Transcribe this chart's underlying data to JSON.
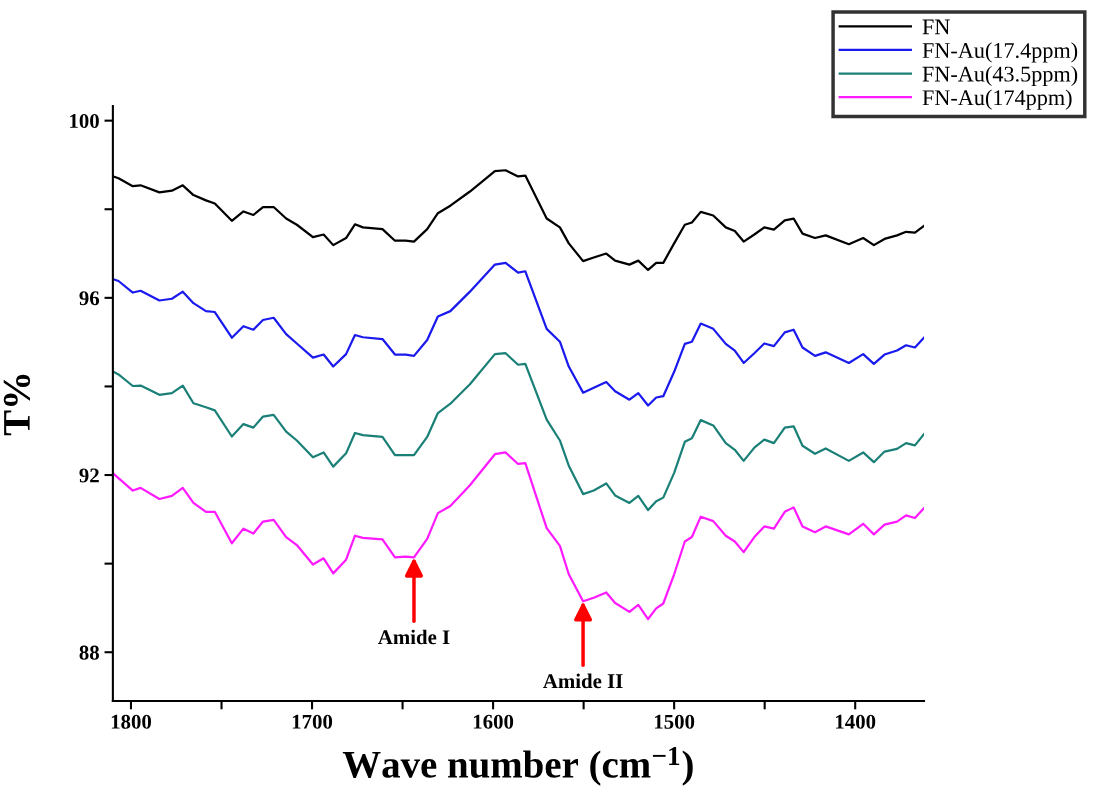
{
  "chart_data": {
    "type": "line",
    "xlabel": "Wave number (cm$^{−1}$)",
    "ylabel": "T%",
    "x": [
      1809.7,
      1806.9,
      1799.0,
      1794.7,
      1784.3,
      1777.4,
      1771.4,
      1765.5,
      1758.6,
      1753.7,
      1744.3,
      1737.9,
      1732.4,
      1727.1,
      1721.2,
      1714.3,
      1708.4,
      1699.5,
      1693.6,
      1688.3,
      1681.2,
      1676.3,
      1671.9,
      1661.1,
      1654.2,
      1648.3,
      1643.7,
      1636.4,
      1630.5,
      1623.6,
      1612.8,
      1599.0,
      1593.1,
      1586.2,
      1582.2,
      1570.4,
      1563.1,
      1558.2,
      1550.3,
      1544.4,
      1537.5,
      1532.6,
      1524.7,
      1519.8,
      1514.4,
      1509.9,
      1506.0,
      1500.0,
      1494.1,
      1490.2,
      1485.3,
      1478.4,
      1471.5,
      1466.5,
      1461.6,
      1455.7,
      1450.2,
      1444.9,
      1438.9,
      1434.0,
      1429.1,
      1422.2,
      1416.3,
      1403.5,
      1395.6,
      1389.7,
      1383.8,
      1376.9,
      1371.9,
      1367.0,
      1362.1
    ],
    "series": [
      {
        "name": "FN",
        "color": "#000000",
        "values": [
          98.74,
          98.7,
          98.52,
          98.54,
          98.38,
          98.42,
          98.54,
          98.32,
          98.2,
          98.13,
          97.74,
          97.95,
          97.87,
          98.05,
          98.05,
          97.79,
          97.65,
          97.37,
          97.43,
          97.19,
          97.35,
          97.66,
          97.59,
          97.55,
          97.29,
          97.29,
          97.27,
          97.55,
          97.91,
          98.08,
          98.4,
          98.86,
          98.88,
          98.74,
          98.76,
          97.79,
          97.59,
          97.23,
          96.83,
          96.91,
          97.0,
          96.84,
          96.75,
          96.84,
          96.63,
          96.79,
          96.79,
          97.23,
          97.65,
          97.7,
          97.94,
          97.86,
          97.59,
          97.51,
          97.27,
          97.43,
          97.59,
          97.54,
          97.75,
          97.79,
          97.45,
          97.35,
          97.41,
          97.21,
          97.35,
          97.19,
          97.33,
          97.41,
          97.49,
          97.47,
          97.62
        ]
      },
      {
        "name": "FN-Au(17.4ppm)",
        "color": "#1a1aee",
        "values": [
          96.42,
          96.38,
          96.12,
          96.16,
          95.94,
          95.98,
          96.14,
          95.88,
          95.7,
          95.68,
          95.1,
          95.36,
          95.28,
          95.5,
          95.55,
          95.18,
          94.97,
          94.65,
          94.72,
          94.45,
          94.73,
          95.16,
          95.11,
          95.07,
          94.72,
          94.72,
          94.69,
          95.05,
          95.58,
          95.7,
          96.14,
          96.75,
          96.79,
          96.57,
          96.6,
          95.3,
          95.01,
          94.45,
          93.86,
          93.97,
          94.1,
          93.89,
          93.7,
          93.85,
          93.57,
          93.75,
          93.78,
          94.33,
          94.96,
          95.01,
          95.42,
          95.3,
          94.96,
          94.81,
          94.53,
          94.75,
          94.97,
          94.91,
          95.22,
          95.28,
          94.88,
          94.69,
          94.77,
          94.53,
          94.73,
          94.51,
          94.72,
          94.81,
          94.93,
          94.88,
          95.1
        ]
      },
      {
        "name": "FN-Au(43.5ppm)",
        "color": "#1a8077",
        "values": [
          94.33,
          94.27,
          94.01,
          94.02,
          93.81,
          93.85,
          94.02,
          93.62,
          93.53,
          93.46,
          92.87,
          93.15,
          93.07,
          93.32,
          93.36,
          92.98,
          92.78,
          92.4,
          92.51,
          92.19,
          92.49,
          92.95,
          92.9,
          92.86,
          92.45,
          92.45,
          92.45,
          92.86,
          93.4,
          93.61,
          94.05,
          94.73,
          94.75,
          94.49,
          94.51,
          93.25,
          92.78,
          92.21,
          91.57,
          91.65,
          91.81,
          91.54,
          91.37,
          91.53,
          91.21,
          91.41,
          91.49,
          92.05,
          92.75,
          92.83,
          93.24,
          93.12,
          92.72,
          92.57,
          92.32,
          92.62,
          92.8,
          92.72,
          93.07,
          93.1,
          92.66,
          92.48,
          92.6,
          92.32,
          92.51,
          92.29,
          92.53,
          92.59,
          92.72,
          92.67,
          92.92
        ]
      },
      {
        "name": "FN-Au(174ppm)",
        "color": "#ff1aff",
        "values": [
          92.03,
          91.93,
          91.65,
          91.71,
          91.46,
          91.53,
          91.71,
          91.37,
          91.17,
          91.17,
          90.46,
          90.79,
          90.68,
          90.95,
          90.99,
          90.6,
          90.42,
          89.98,
          90.12,
          89.78,
          90.09,
          90.63,
          90.58,
          90.55,
          90.14,
          90.16,
          90.14,
          90.56,
          91.14,
          91.3,
          91.77,
          92.47,
          92.51,
          92.25,
          92.27,
          90.8,
          90.4,
          89.76,
          89.15,
          89.23,
          89.35,
          89.11,
          88.91,
          89.07,
          88.75,
          88.99,
          89.1,
          89.76,
          90.5,
          90.6,
          91.06,
          90.96,
          90.63,
          90.5,
          90.26,
          90.6,
          90.84,
          90.79,
          91.17,
          91.27,
          90.84,
          90.71,
          90.84,
          90.66,
          90.9,
          90.66,
          90.88,
          90.95,
          91.09,
          91.03,
          91.25
        ]
      }
    ],
    "xlim": [
      1810,
      1362
    ],
    "xticks": [
      1800,
      {
        "value": 1750,
        "label": null
      },
      1700,
      {
        "value": 1650,
        "label": null
      },
      1600,
      {
        "value": 1550,
        "label": null
      },
      1500,
      {
        "value": 1450,
        "label": null
      },
      1400
    ],
    "ylim": [
      86.9,
      100.33
    ],
    "yticks": [
      {
        "value": 88,
        "label": "88"
      },
      {
        "value": 90,
        "label": null
      },
      {
        "value": 92,
        "label": "92"
      },
      {
        "value": 94,
        "label": null
      },
      {
        "value": 96,
        "label": "96"
      },
      {
        "value": 98,
        "label": null
      },
      {
        "value": 100,
        "label": "100"
      }
    ],
    "annotations": [
      {
        "text": "Amide I",
        "x": 1643.7,
        "y": 90.14
      },
      {
        "text": "Amide II",
        "x": 1550.3,
        "y": 89.15
      }
    ],
    "legend": "top right",
    "grid": false,
    "line_style": "solid",
    "marker": "none"
  }
}
